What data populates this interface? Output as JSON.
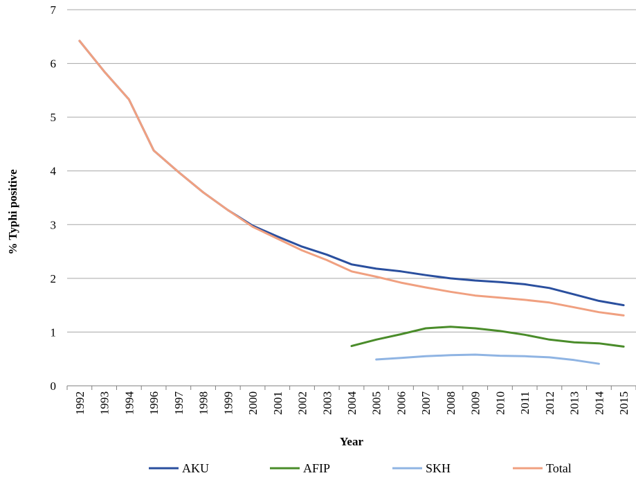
{
  "chart_data": {
    "type": "line",
    "title": "",
    "xlabel": "Year",
    "ylabel": "% Typhi positive",
    "ylim": [
      0,
      7
    ],
    "yticks": [
      "0",
      "1",
      "2",
      "3",
      "4",
      "5",
      "6",
      "7"
    ],
    "grid": "horizontal",
    "legend_position": "bottom",
    "categories": [
      "1992",
      "1993",
      "1994",
      "1996",
      "1997",
      "1998",
      "1999",
      "2000",
      "2001",
      "2002",
      "2003",
      "2004",
      "2005",
      "2006",
      "2007",
      "2008",
      "2009",
      "2010",
      "2011",
      "2012",
      "2013",
      "2014",
      "2015"
    ],
    "series": [
      {
        "name": "AKU",
        "color": "#2a4f9e",
        "values": [
          6.42,
          5.85,
          5.33,
          4.38,
          3.98,
          3.6,
          3.27,
          2.98,
          2.78,
          2.59,
          2.44,
          2.26,
          2.18,
          2.13,
          2.06,
          2.0,
          1.96,
          1.93,
          1.89,
          1.82,
          1.7,
          1.58,
          1.5
        ]
      },
      {
        "name": "AFIP",
        "color": "#4a8c2a",
        "values": [
          null,
          null,
          null,
          null,
          null,
          null,
          null,
          null,
          null,
          null,
          null,
          0.74,
          0.86,
          0.96,
          1.07,
          1.1,
          1.07,
          1.02,
          0.95,
          0.86,
          0.81,
          0.79,
          0.73
        ]
      },
      {
        "name": "SKH",
        "color": "#8fb4e3",
        "values": [
          null,
          null,
          null,
          null,
          null,
          null,
          null,
          null,
          null,
          null,
          null,
          null,
          0.49,
          0.52,
          0.55,
          0.57,
          0.58,
          0.56,
          0.55,
          0.53,
          0.48,
          0.41,
          null
        ]
      },
      {
        "name": "Total",
        "color": "#f0a080",
        "values": [
          6.42,
          5.85,
          5.33,
          4.38,
          3.98,
          3.6,
          3.27,
          2.96,
          2.74,
          2.52,
          2.34,
          2.13,
          2.03,
          1.92,
          1.83,
          1.75,
          1.68,
          1.64,
          1.6,
          1.55,
          1.46,
          1.37,
          1.31
        ]
      }
    ]
  }
}
